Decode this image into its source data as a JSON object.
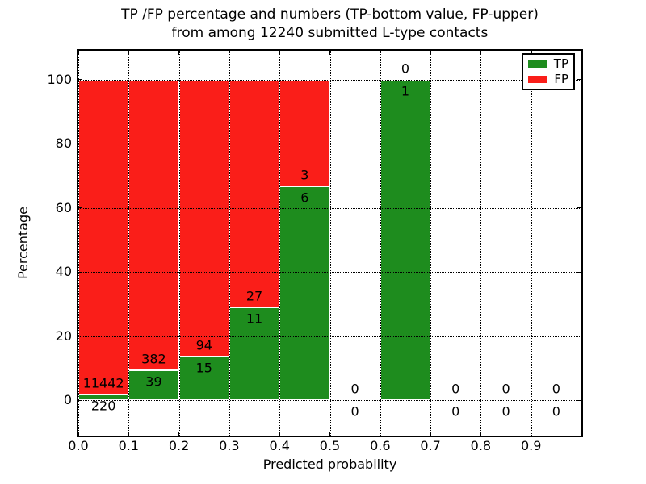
{
  "title": {
    "line1": "TP /FP percentage and numbers (TP-bottom value, FP-upper)",
    "line2": "from among 12240 submitted L-type contacts"
  },
  "axes": {
    "xlabel": "Predicted probability",
    "ylabel": "Percentage",
    "xlim": [
      0.0,
      1.0
    ],
    "ylim": [
      -11,
      109
    ],
    "x_tick_values": [
      0.0,
      0.1,
      0.2,
      0.3,
      0.4,
      0.5,
      0.6,
      0.7,
      0.8,
      0.9
    ],
    "x_tick_labels": [
      "0.0",
      "0.1",
      "0.2",
      "0.3",
      "0.4",
      "0.5",
      "0.6",
      "0.7",
      "0.8",
      "0.9"
    ],
    "y_tick_values": [
      0,
      20,
      40,
      60,
      80,
      100
    ],
    "y_tick_labels": [
      "0",
      "20",
      "40",
      "60",
      "80",
      "100"
    ],
    "grid_style": "dotted"
  },
  "legend": {
    "position": "upper-right",
    "items": [
      {
        "label": "TP",
        "color": "#1e8c1e"
      },
      {
        "label": "FP",
        "color": "#fa1e19"
      }
    ]
  },
  "colors": {
    "tp": "#1e8c1e",
    "fp": "#fa1e19",
    "bar_edge": "#ffffff",
    "grid": "#000000",
    "text": "#000000"
  },
  "chart_data": {
    "type": "bar",
    "stacked": true,
    "total_submitted": 12240,
    "bin_width": 0.1,
    "label_rule": "FP count above TP/FP boundary, TP count below boundary",
    "bins": [
      {
        "range": [
          0.0,
          0.1
        ],
        "tp": 220,
        "fp": 11442
      },
      {
        "range": [
          0.1,
          0.2
        ],
        "tp": 39,
        "fp": 382
      },
      {
        "range": [
          0.2,
          0.3
        ],
        "tp": 15,
        "fp": 94
      },
      {
        "range": [
          0.3,
          0.4
        ],
        "tp": 11,
        "fp": 27
      },
      {
        "range": [
          0.4,
          0.5
        ],
        "tp": 6,
        "fp": 3
      },
      {
        "range": [
          0.5,
          0.6
        ],
        "tp": 0,
        "fp": 0
      },
      {
        "range": [
          0.6,
          0.7
        ],
        "tp": 1,
        "fp": 0
      },
      {
        "range": [
          0.7,
          0.8
        ],
        "tp": 0,
        "fp": 0
      },
      {
        "range": [
          0.8,
          0.9
        ],
        "tp": 0,
        "fp": 0
      },
      {
        "range": [
          0.9,
          1.0
        ],
        "tp": 0,
        "fp": 0
      }
    ]
  }
}
